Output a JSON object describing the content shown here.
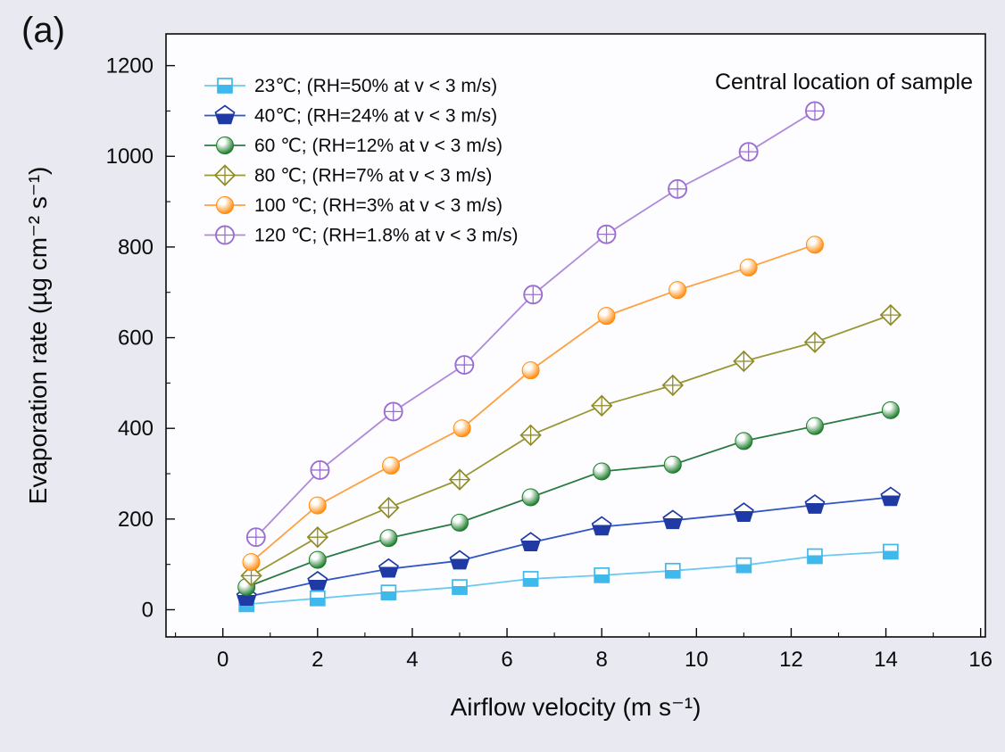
{
  "panel_label": "(a)",
  "chart_data": {
    "type": "line",
    "title": "",
    "annotation": "Central location of sample",
    "xlabel": "Airflow velocity (m s⁻¹)",
    "ylabel": "Evaporation rate (µg cm⁻² s⁻¹)",
    "xlim": [
      -1.2,
      16.1
    ],
    "ylim": [
      -60,
      1270
    ],
    "xticks": [
      0,
      2,
      4,
      6,
      8,
      10,
      12,
      14,
      16
    ],
    "yticks": [
      0,
      200,
      400,
      600,
      800,
      1000,
      1200
    ],
    "x_minor_step": 1,
    "y_minor_step": 100,
    "grid": false,
    "legend_position": "top-left",
    "series": [
      {
        "key": "23c",
        "name": "23℃; (RH=50% at v < 3 m/s)",
        "color": "#3fb8ec",
        "line_color": "#6cc9ef",
        "marker": "half-square",
        "x": [
          0.5,
          2,
          3.5,
          5,
          6.5,
          8,
          9.5,
          11,
          12.5,
          14.1
        ],
        "y": [
          12,
          25,
          38,
          50,
          68,
          76,
          86,
          98,
          118,
          128
        ]
      },
      {
        "key": "40c",
        "name": "40℃; (RH=24% at v < 3 m/s)",
        "color": "#1f3aa5",
        "line_color": "#2f55c8",
        "marker": "half-pentagon",
        "x": [
          0.5,
          2,
          3.5,
          5,
          6.5,
          8,
          9.5,
          11,
          12.5,
          14.1
        ],
        "y": [
          28,
          62,
          90,
          108,
          148,
          183,
          197,
          213,
          231,
          248
        ]
      },
      {
        "key": "60c",
        "name": "60 ℃; (RH=12% at v < 3 m/s)",
        "color": "#1d7d2c",
        "line_color": "#2a7a45",
        "marker": "sphere",
        "x": [
          0.5,
          2,
          3.5,
          5,
          6.5,
          8,
          9.5,
          11,
          12.5,
          14.1
        ],
        "y": [
          50,
          110,
          158,
          192,
          248,
          305,
          320,
          372,
          405,
          440
        ]
      },
      {
        "key": "80c",
        "name": "80 ℃; (RH=7% at v < 3 m/s)",
        "color": "#8f8c28",
        "line_color": "#9a9736",
        "marker": "diamond-cross",
        "x": [
          0.6,
          2,
          3.5,
          5,
          6.5,
          8,
          9.5,
          11,
          12.5,
          14.1
        ],
        "y": [
          75,
          160,
          225,
          287,
          385,
          450,
          495,
          548,
          590,
          650
        ]
      },
      {
        "key": "100c",
        "name": "100 ℃; (RH=3% at v < 3 m/s)",
        "color": "#ff8c0f",
        "line_color": "#ffa040",
        "marker": "sphere",
        "x": [
          0.6,
          2,
          3.55,
          5.05,
          6.5,
          8.1,
          9.6,
          11.1,
          12.5
        ],
        "y": [
          105,
          230,
          318,
          400,
          528,
          648,
          705,
          755,
          805
        ]
      },
      {
        "key": "120c",
        "name": "120 ℃; (RH=1.8% at v < 3 m/s)",
        "color": "#9a6fd0",
        "line_color": "#ad8ada",
        "marker": "circle-cross",
        "x": [
          0.7,
          2.05,
          3.6,
          5.1,
          6.55,
          8.1,
          9.6,
          11.1,
          12.5
        ],
        "y": [
          160,
          308,
          437,
          540,
          695,
          828,
          928,
          1010,
          1100
        ]
      }
    ]
  }
}
